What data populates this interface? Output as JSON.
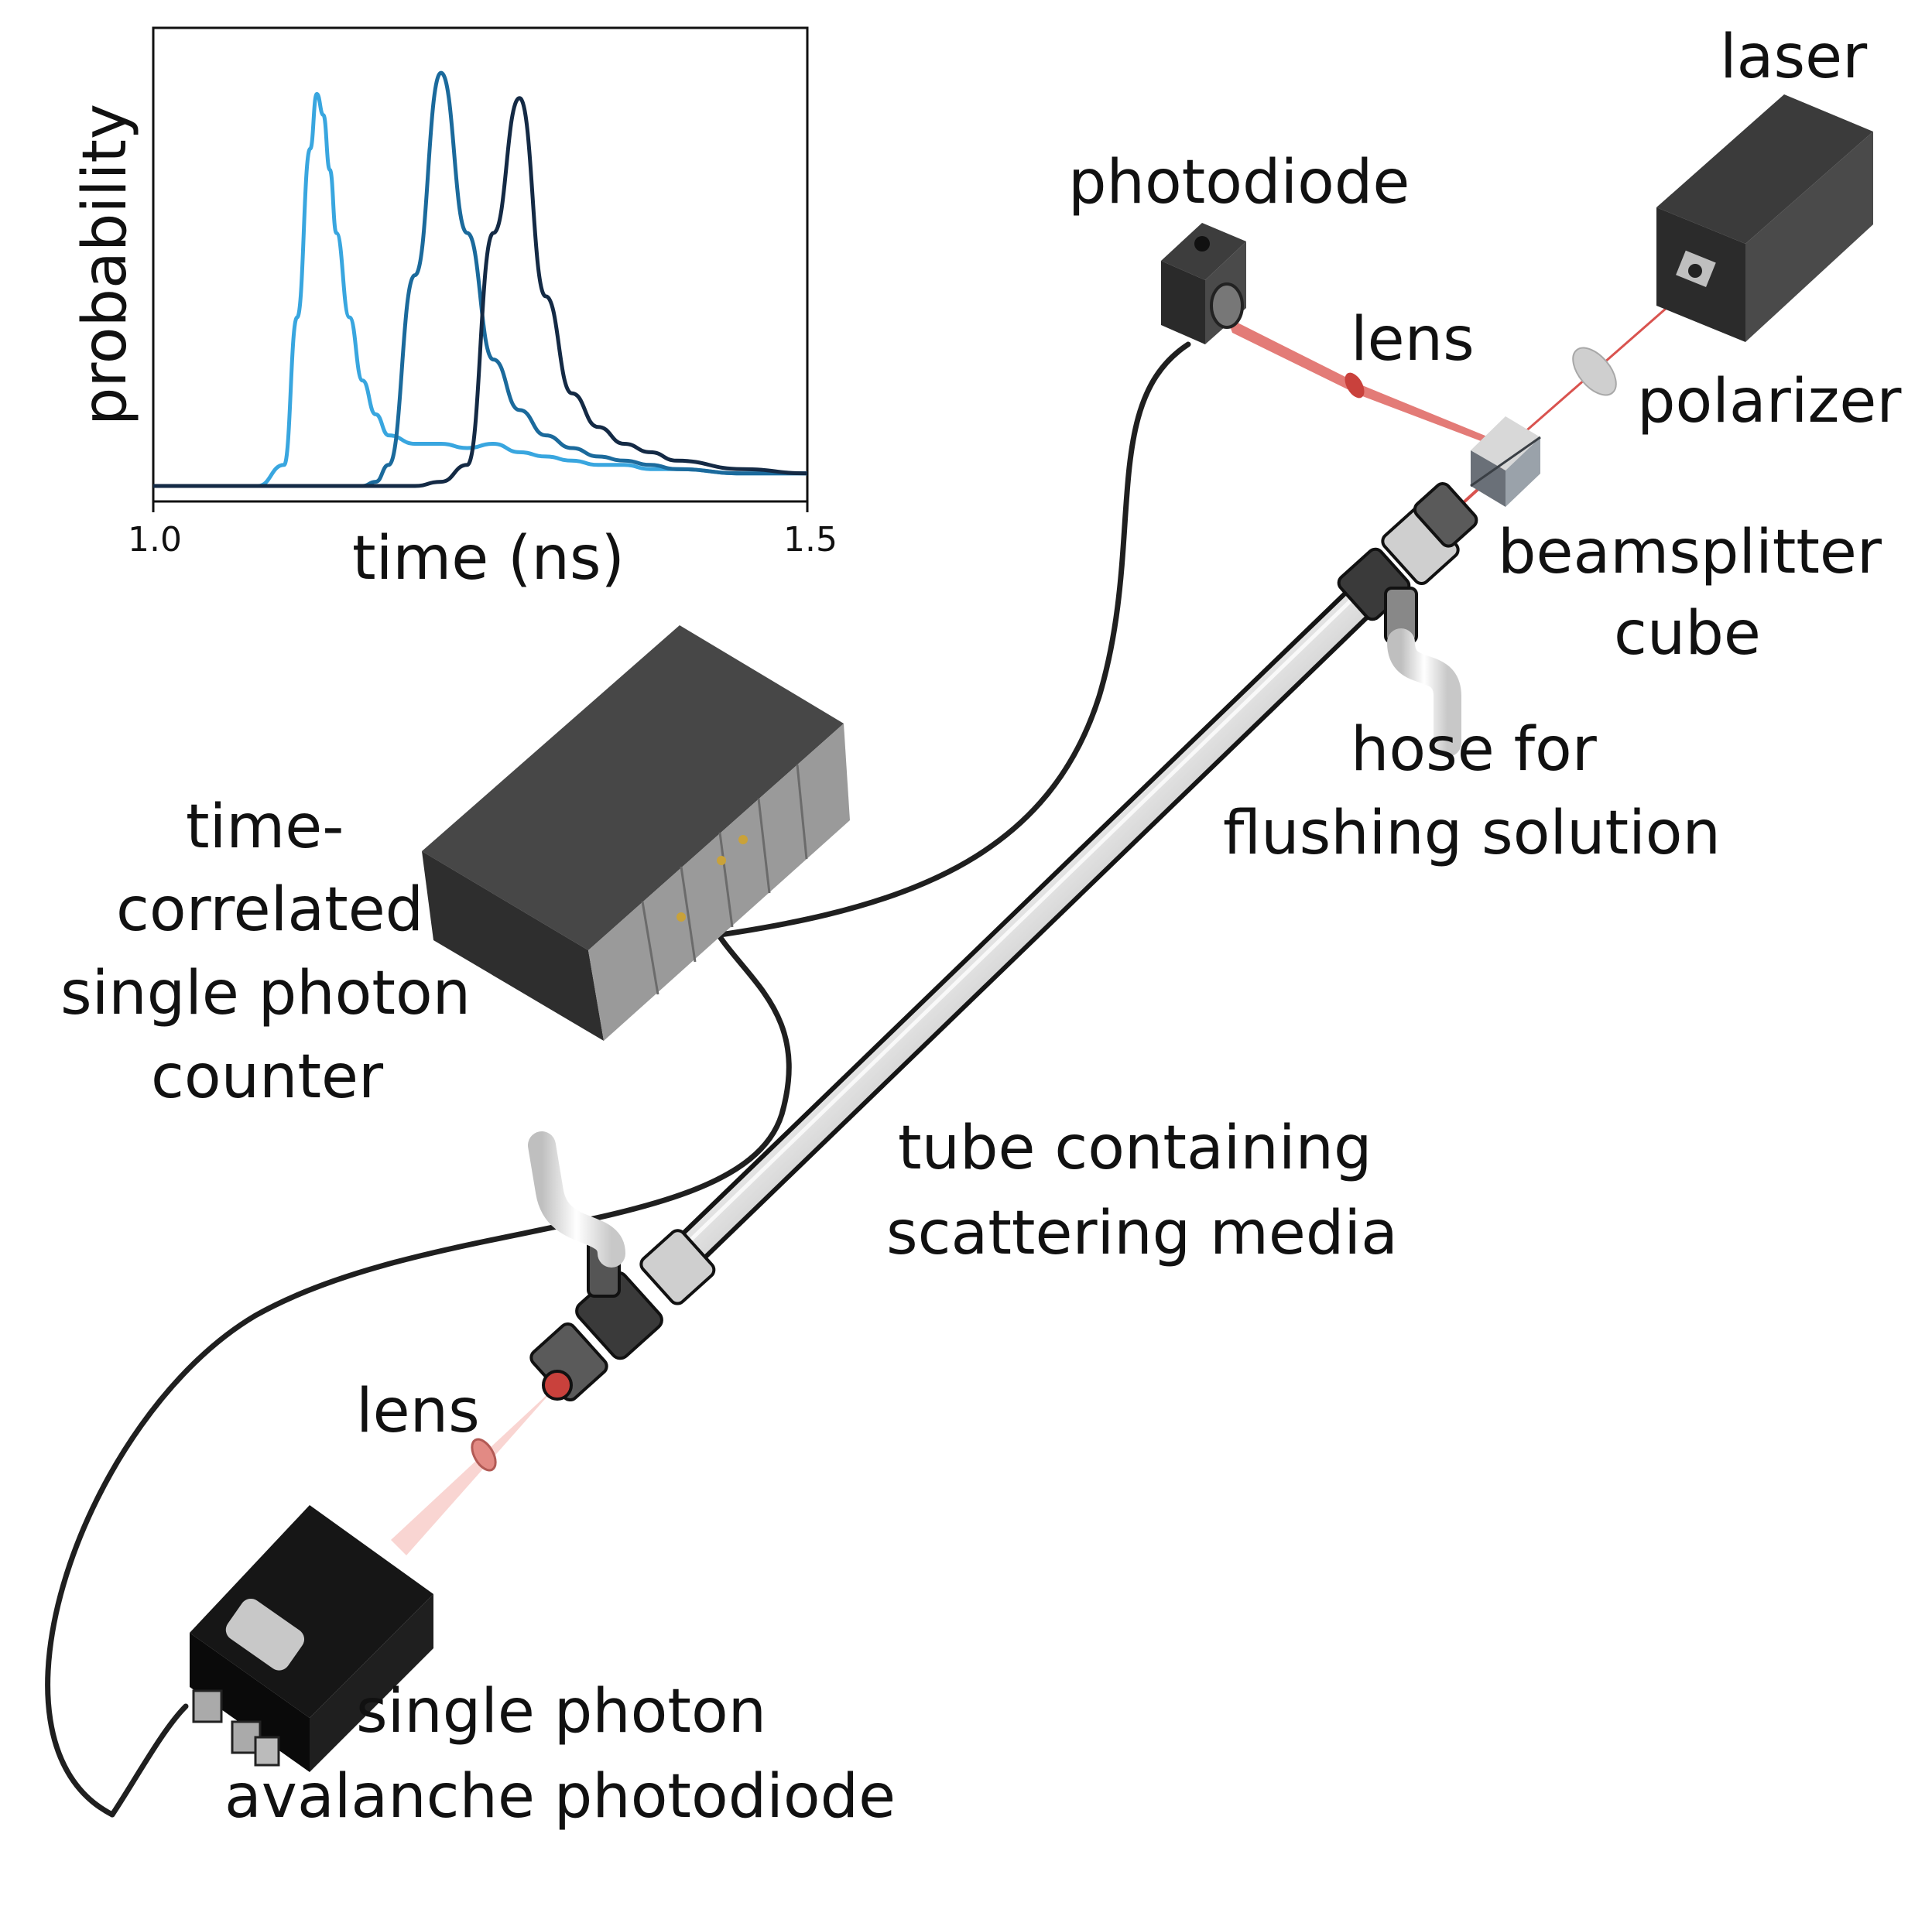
{
  "labels": {
    "laser": "laser",
    "photodiode": "photodiode",
    "lens_top": "lens",
    "polarizer": "polarizer",
    "beamsplitter_1": "beamsplitter",
    "beamsplitter_2": "cube",
    "hose_1": "hose for",
    "hose_2": "flushing solution",
    "tcspc_1": "time-",
    "tcspc_2": "correlated",
    "tcspc_3": "single photon",
    "tcspc_4": "counter",
    "tube_1": "tube containing",
    "tube_2": "scattering media",
    "lens_bottom": "lens",
    "spad_1": "single photon",
    "spad_2": "avalanche photodiode"
  },
  "colors": {
    "device_dark": "#3a3a3a",
    "device_front": "#555555",
    "laser_beam": "#d9534f",
    "beam_cone": "#f4b8b4",
    "curve_1": "#39a6df",
    "curve_2": "#1b6a9c",
    "curve_3": "#142a45"
  },
  "chart_data": {
    "type": "line",
    "xlabel": "time (ns)",
    "ylabel": "probability",
    "xlim": [
      1.0,
      1.5
    ],
    "ylim": [
      0,
      1.05
    ],
    "xticks": [
      "1.0",
      "1.5"
    ],
    "grid": false,
    "x": [
      1.0,
      1.05,
      1.08,
      1.1,
      1.11,
      1.12,
      1.125,
      1.13,
      1.135,
      1.14,
      1.15,
      1.16,
      1.17,
      1.18,
      1.2,
      1.22,
      1.24,
      1.26,
      1.28,
      1.3,
      1.32,
      1.34,
      1.36,
      1.38,
      1.4,
      1.45,
      1.5
    ],
    "series": [
      {
        "values": [
          0.0,
          0.0,
          0.0,
          0.05,
          0.4,
          0.8,
          0.93,
          0.88,
          0.75,
          0.6,
          0.4,
          0.25,
          0.17,
          0.12,
          0.1,
          0.1,
          0.09,
          0.1,
          0.08,
          0.07,
          0.06,
          0.05,
          0.05,
          0.04,
          0.04,
          0.03,
          0.03
        ]
      },
      {
        "values": [
          0.0,
          0.0,
          0.0,
          0.0,
          0.0,
          0.0,
          0.0,
          0.0,
          0.0,
          0.0,
          0.0,
          0.0,
          0.01,
          0.05,
          0.5,
          0.98,
          0.6,
          0.3,
          0.18,
          0.12,
          0.09,
          0.07,
          0.06,
          0.05,
          0.04,
          0.03,
          0.03
        ]
      },
      {
        "values": [
          0.0,
          0.0,
          0.0,
          0.0,
          0.0,
          0.0,
          0.0,
          0.0,
          0.0,
          0.0,
          0.0,
          0.0,
          0.0,
          0.0,
          0.0,
          0.01,
          0.05,
          0.6,
          0.92,
          0.45,
          0.22,
          0.14,
          0.1,
          0.08,
          0.06,
          0.04,
          0.03
        ]
      }
    ]
  }
}
